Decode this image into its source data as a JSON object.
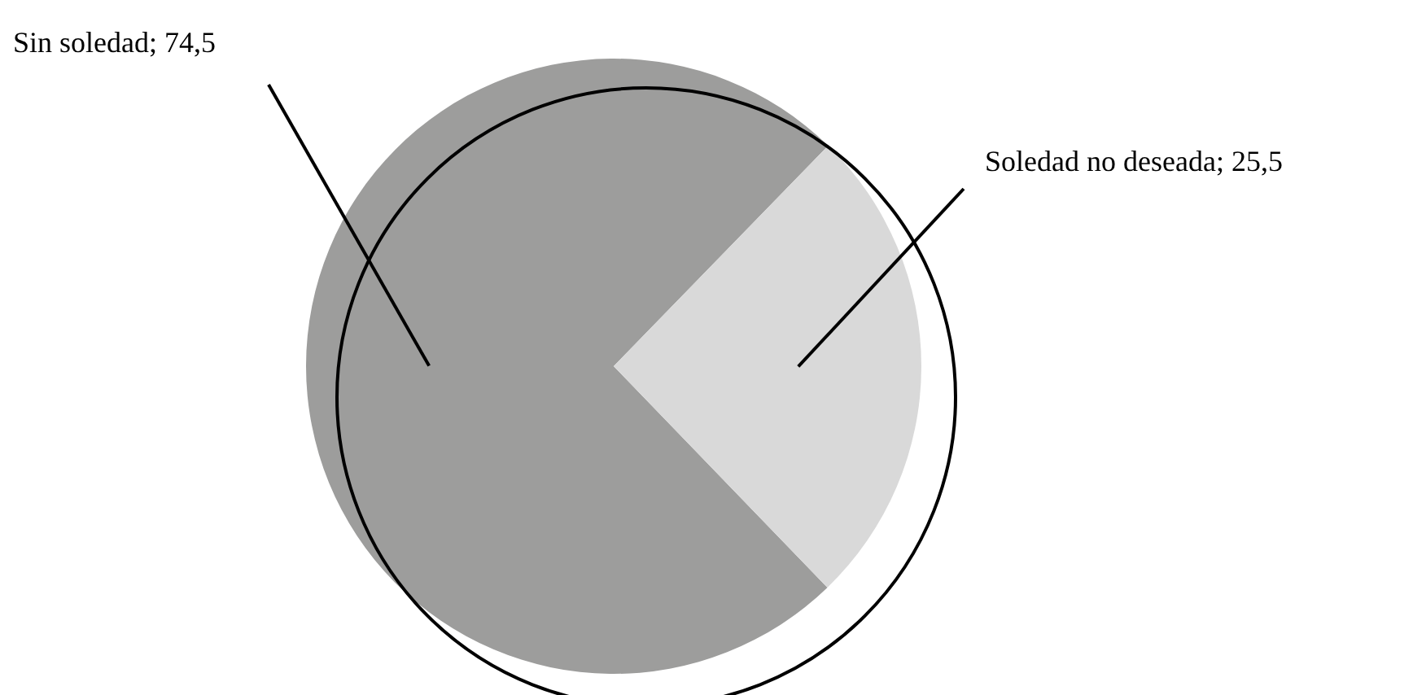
{
  "chart_data": {
    "type": "pie",
    "categories": [
      "Sin soledad",
      "Soledad no deseada"
    ],
    "values": [
      74.5,
      25.5
    ],
    "colors": [
      "#9d9d9c",
      "#d9d9d9"
    ],
    "value_labels": [
      "74,5",
      "25,5"
    ]
  }
}
